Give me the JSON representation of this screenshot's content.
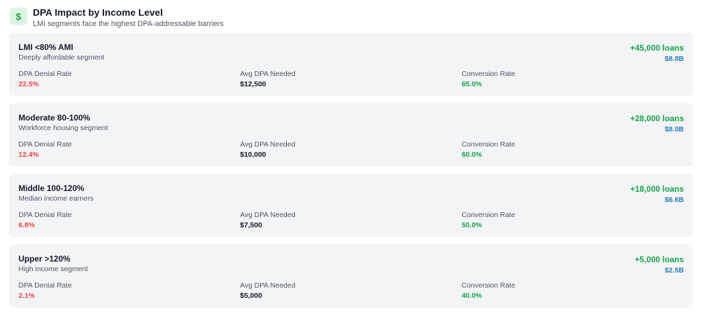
{
  "header": {
    "icon": "dollar-icon",
    "icon_glyph": "$",
    "title": "DPA Impact by Income Level",
    "subtitle": "LMI segments face the highest DPA-addressable barriers"
  },
  "labels": {
    "denial": "DPA Denial Rate",
    "avg": "Avg DPA Needed",
    "conversion": "Conversion Rate"
  },
  "segments": [
    {
      "name": "LMI <80% AMI",
      "desc": "Deeply affordable segment",
      "loans": "+45,000 loans",
      "value": "$8.8B",
      "denial": "22.5%",
      "avg": "$12,500",
      "conversion": "65.0%"
    },
    {
      "name": "Moderate 80-100%",
      "desc": "Workforce housing segment",
      "loans": "+28,000 loans",
      "value": "$8.0B",
      "denial": "12.4%",
      "avg": "$10,000",
      "conversion": "60.0%"
    },
    {
      "name": "Middle 100-120%",
      "desc": "Median income earners",
      "loans": "+18,000 loans",
      "value": "$6.6B",
      "denial": "6.8%",
      "avg": "$7,500",
      "conversion": "50.0%"
    },
    {
      "name": "Upper >120%",
      "desc": "High income segment",
      "loans": "+5,000 loans",
      "value": "$2.5B",
      "denial": "2.1%",
      "avg": "$5,000",
      "conversion": "40.0%"
    }
  ],
  "colors": {
    "accent_green": "#16a34a",
    "denial_red": "#ef4444",
    "value_blue": "#2b7bb9",
    "card_bg": "#f3f4f6"
  }
}
